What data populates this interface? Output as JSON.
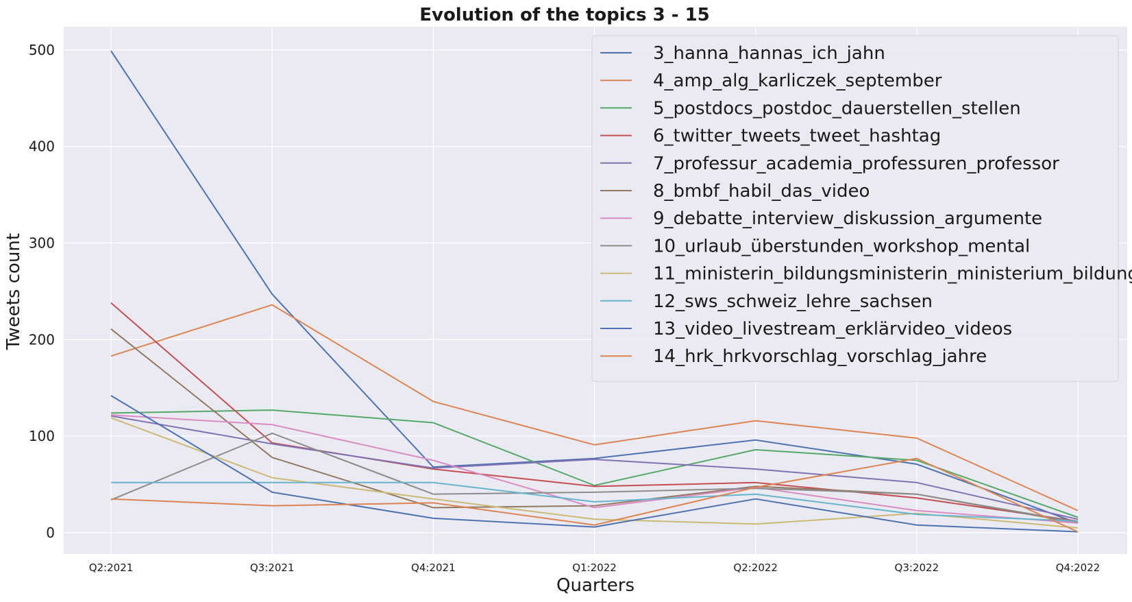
{
  "chart_data": {
    "type": "line",
    "title": "Evolution of the topics 3 - 15",
    "xlabel": "Quarters",
    "ylabel": "Tweets count",
    "categories": [
      "Q2:2021",
      "Q3:2021",
      "Q4:2021",
      "Q1:2022",
      "Q2:2022",
      "Q3:2022",
      "Q4:2022"
    ],
    "ylim": [
      -22,
      524
    ],
    "yticks": [
      0,
      100,
      200,
      300,
      400,
      500
    ],
    "grid": true,
    "background": "#eaeaf2",
    "grid_color": "#ffffff",
    "legend_position": "top-right",
    "series": [
      {
        "name": "3_hanna_hannas_ich_jahn",
        "color": "#4c72b0",
        "values": [
          499,
          247,
          68,
          77,
          96,
          71,
          10
        ]
      },
      {
        "name": "4_amp_alg_karliczek_september",
        "color": "#dd8452",
        "values": [
          183,
          236,
          136,
          91,
          116,
          98,
          23
        ]
      },
      {
        "name": "5_postdocs_postdoc_dauerstellen_stellen",
        "color": "#55a868",
        "values": [
          124,
          127,
          114,
          49,
          86,
          75,
          16
        ]
      },
      {
        "name": "6_twitter_tweets_tweet_hashtag",
        "color": "#c44e52",
        "values": [
          238,
          93,
          66,
          48,
          52,
          36,
          12
        ]
      },
      {
        "name": "7_professur_academia_professuren_professor",
        "color": "#8172b3",
        "values": [
          121,
          92,
          67,
          76,
          66,
          52,
          14
        ]
      },
      {
        "name": "8_bmbf_habil_das_video",
        "color": "#937860",
        "values": [
          211,
          78,
          26,
          28,
          48,
          40,
          10
        ]
      },
      {
        "name": "9_debatte_interview_diskussion_argumente",
        "color": "#da8bc3",
        "values": [
          122,
          112,
          75,
          26,
          47,
          23,
          10
        ]
      },
      {
        "name": "10_urlaub_überstunden_workshop_mental",
        "color": "#8c8c8c",
        "values": [
          34,
          103,
          40,
          42,
          46,
          40,
          11
        ]
      },
      {
        "name": "11_ministerin_bildungsministerin_ministerium_bildung",
        "color": "#ccb974",
        "values": [
          119,
          57,
          35,
          14,
          9,
          20,
          5
        ]
      },
      {
        "name": "12_sws_schweiz_lehre_sachsen",
        "color": "#64b5cd",
        "values": [
          52,
          52,
          52,
          32,
          40,
          19,
          12
        ]
      },
      {
        "name": "13_video_livestream_erklärvideo_videos",
        "color": "#4c72b0",
        "values": [
          142,
          42,
          15,
          6,
          35,
          8,
          1
        ]
      },
      {
        "name": "14_hrk_hrkvorschlag_vorschlag_jahre",
        "color": "#dd8452",
        "values": [
          35,
          28,
          31,
          8,
          47,
          77,
          1
        ]
      }
    ]
  }
}
